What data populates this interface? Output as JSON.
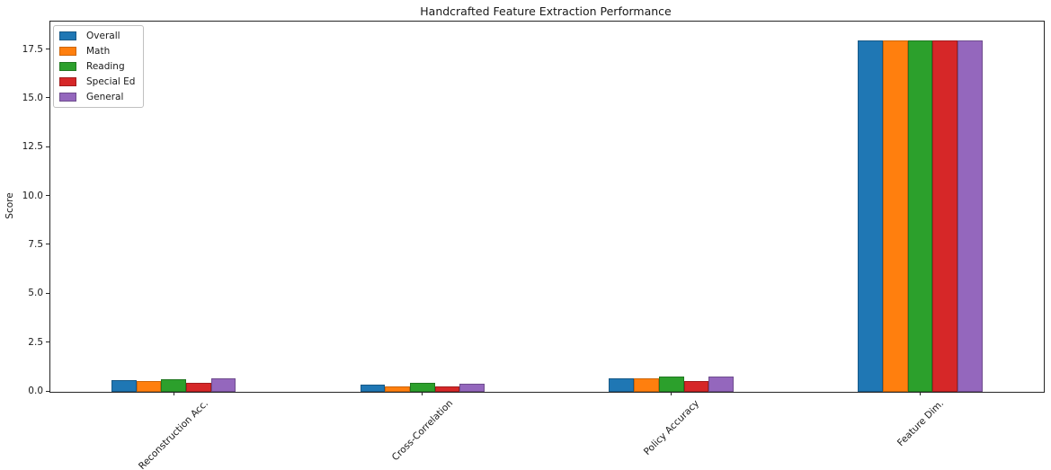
{
  "chart_data": {
    "type": "bar",
    "title": "Handcrafted Feature Extraction Performance",
    "xlabel": "",
    "ylabel": "Score",
    "categories": [
      "Reconstruction Acc.",
      "Cross-Correlation",
      "Policy Accuracy",
      "Feature Dim."
    ],
    "series": [
      {
        "name": "Overall",
        "color": "#1f77b4",
        "edge_color": "#175987",
        "values": [
          0.62,
          0.38,
          0.7,
          18
        ]
      },
      {
        "name": "Math",
        "color": "#ff7f0e",
        "edge_color": "#cc660b",
        "values": [
          0.54,
          0.29,
          0.68,
          18
        ]
      },
      {
        "name": "Reading",
        "color": "#2ca02c",
        "edge_color": "#217821",
        "values": [
          0.65,
          0.45,
          0.78,
          18
        ]
      },
      {
        "name": "Special Ed",
        "color": "#d62728",
        "edge_color": "#a11d1e",
        "values": [
          0.45,
          0.27,
          0.55,
          18
        ]
      },
      {
        "name": "General",
        "color": "#9467bd",
        "edge_color": "#6f4d8e",
        "values": [
          0.7,
          0.43,
          0.76,
          18
        ]
      }
    ],
    "y_ticks": [
      "0.0",
      "2.5",
      "5.0",
      "7.5",
      "10.0",
      "12.5",
      "15.0",
      "17.5"
    ],
    "ylim": [
      0,
      18.95
    ],
    "grid": false,
    "legend_position": "upper left"
  }
}
